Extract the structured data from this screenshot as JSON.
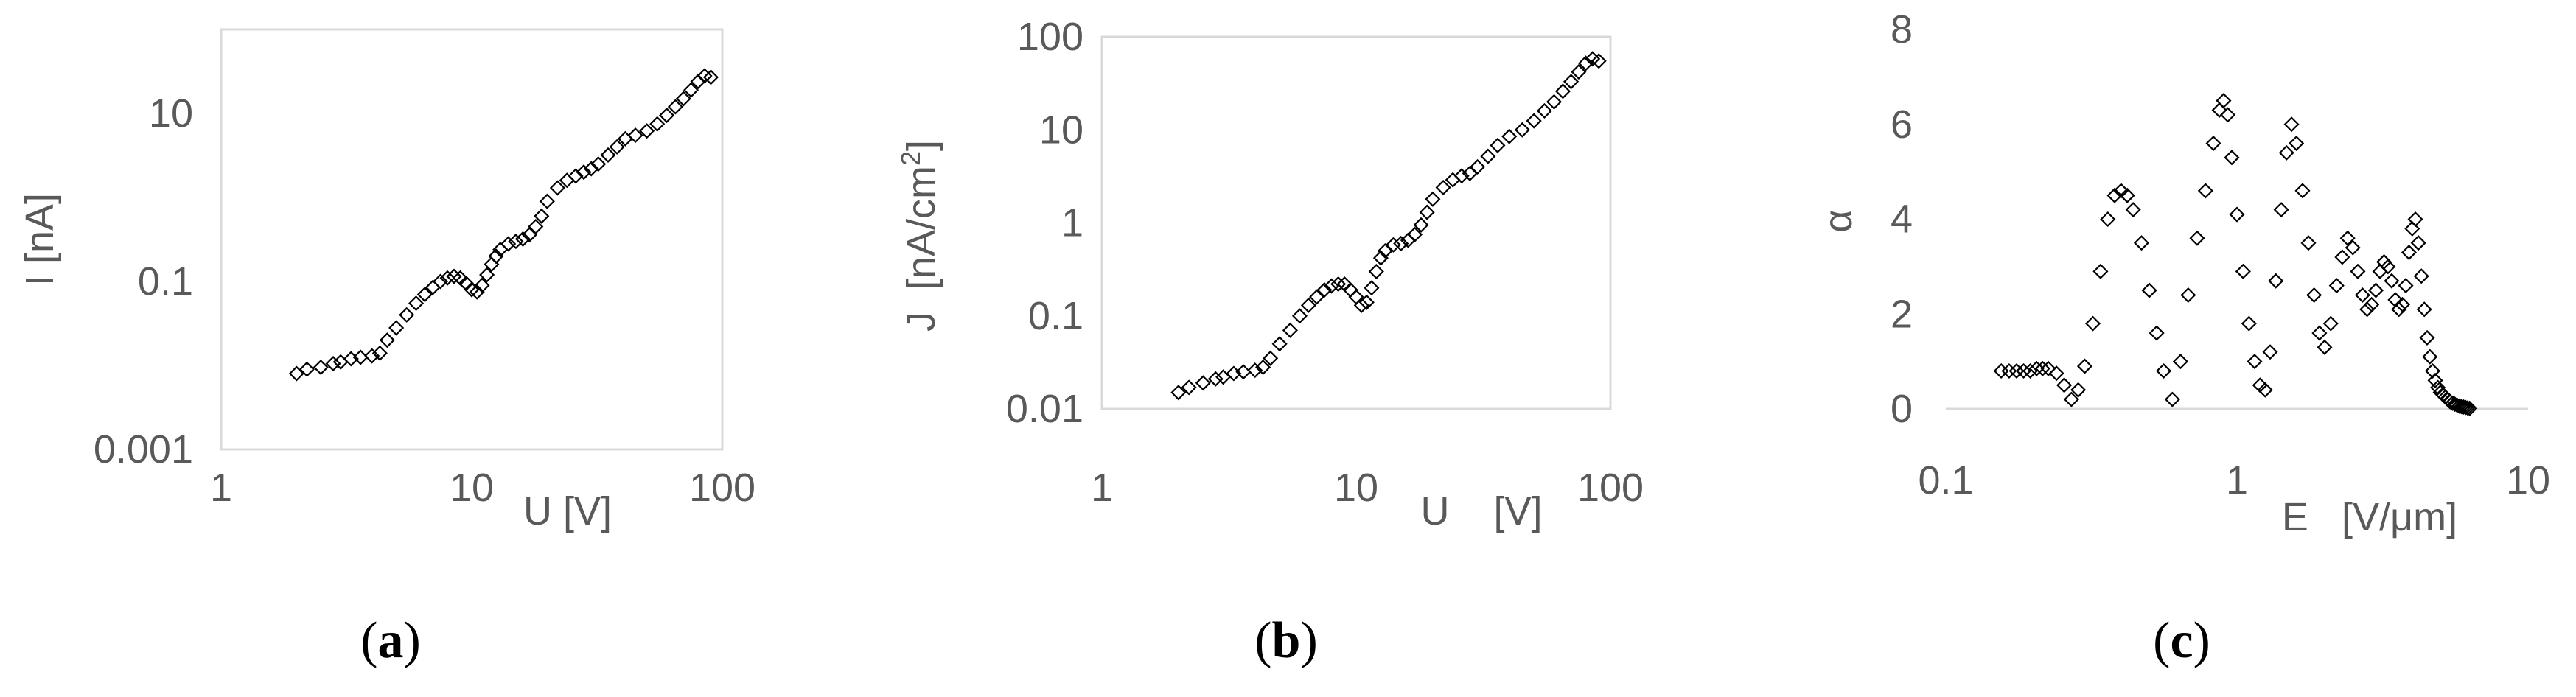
{
  "colors": {
    "axis": "#d9d9d9",
    "tick_label": "#595959",
    "marker": "#000000"
  },
  "captions": {
    "a": "(a)",
    "a_letter": "a",
    "b": "(b)",
    "b_letter": "b",
    "c": "(c)",
    "c_letter": "c"
  },
  "chart_data": [
    {
      "id": "a",
      "type": "scatter",
      "marker": "diamond-open",
      "xscale": "log",
      "yscale": "log",
      "xlim": [
        1,
        100
      ],
      "ylim": [
        0.001,
        100
      ],
      "xticks": [
        1,
        10,
        100
      ],
      "xtick_labels": [
        "1",
        "10",
        "100"
      ],
      "yticks": [
        0.001,
        0.1,
        10
      ],
      "ytick_labels": [
        "0.001",
        "0.1",
        "10"
      ],
      "xlabel": "U [V]",
      "ylabel": "I  [nA]",
      "grid": false,
      "series": [
        {
          "x": [
            2.0,
            2.2,
            2.5,
            2.8,
            3.0,
            3.3,
            3.6,
            4.0,
            4.3,
            4.6,
            5.0,
            5.5,
            6.0,
            6.5,
            7.0,
            7.5,
            8.0,
            8.5,
            9.0,
            9.5,
            10.0,
            10.5,
            11.0,
            11.5,
            12.0,
            12.5,
            13.0,
            14.0,
            15.0,
            16.0,
            17.0,
            18.0,
            19.0,
            20.0,
            22.0,
            24.0,
            26.0,
            28.0,
            30.0,
            32.0,
            35.0,
            38.0,
            41.0,
            45.0,
            50.0,
            55.0,
            60.0,
            65.0,
            70.0,
            75.0,
            80.0,
            85.0,
            90.0
          ],
          "y": [
            0.008,
            0.009,
            0.0095,
            0.0105,
            0.011,
            0.012,
            0.0125,
            0.013,
            0.014,
            0.02,
            0.028,
            0.04,
            0.055,
            0.07,
            0.085,
            0.1,
            0.11,
            0.115,
            0.11,
            0.095,
            0.08,
            0.075,
            0.09,
            0.12,
            0.16,
            0.2,
            0.24,
            0.28,
            0.3,
            0.32,
            0.36,
            0.45,
            0.6,
            0.9,
            1.3,
            1.6,
            1.8,
            2.0,
            2.2,
            2.5,
            3.2,
            4.0,
            5.0,
            5.5,
            6.2,
            7.5,
            9.5,
            12.0,
            15.0,
            19.0,
            24.0,
            28.0,
            27.0
          ]
        }
      ]
    },
    {
      "id": "b",
      "type": "scatter",
      "marker": "diamond-open",
      "xscale": "log",
      "yscale": "log",
      "xlim": [
        1,
        100
      ],
      "ylim": [
        0.01,
        100
      ],
      "xticks": [
        1,
        10,
        100
      ],
      "xtick_labels": [
        "1",
        "10",
        "100"
      ],
      "yticks": [
        0.01,
        0.1,
        1,
        10,
        100
      ],
      "ytick_labels": [
        "0.01",
        "0.1",
        "1",
        "10",
        "100"
      ],
      "xlabel": "U    [V]",
      "ylabel": "J  [nA/cm",
      "ylabel_sup": "2",
      "ylabel_end": "]",
      "grid": false,
      "series": [
        {
          "x": [
            2.0,
            2.2,
            2.5,
            2.8,
            3.0,
            3.3,
            3.6,
            4.0,
            4.3,
            4.6,
            5.0,
            5.5,
            6.0,
            6.5,
            7.0,
            7.5,
            8.0,
            8.5,
            9.0,
            9.5,
            10.0,
            10.5,
            11.0,
            11.5,
            12.0,
            12.5,
            13.0,
            14.0,
            15.0,
            16.0,
            17.0,
            18.0,
            19.0,
            20.0,
            22.0,
            24.0,
            26.0,
            28.0,
            30.0,
            33.0,
            36.0,
            40.0,
            45.0,
            50.0,
            55.0,
            60.0,
            65.0,
            70.0,
            75.0,
            80.0,
            85.0,
            90.0
          ],
          "y": [
            0.015,
            0.017,
            0.019,
            0.021,
            0.022,
            0.024,
            0.025,
            0.026,
            0.028,
            0.035,
            0.05,
            0.07,
            0.1,
            0.13,
            0.16,
            0.19,
            0.21,
            0.22,
            0.22,
            0.19,
            0.16,
            0.13,
            0.14,
            0.2,
            0.3,
            0.42,
            0.5,
            0.58,
            0.6,
            0.65,
            0.75,
            0.95,
            1.3,
            1.8,
            2.4,
            2.9,
            3.2,
            3.4,
            4.0,
            5.2,
            6.8,
            8.5,
            10.0,
            12.5,
            16.0,
            20.0,
            26.0,
            33.0,
            42.0,
            52.0,
            58.0,
            55.0
          ]
        }
      ]
    },
    {
      "id": "c",
      "type": "scatter",
      "marker": "diamond-open",
      "xscale": "log",
      "yscale": "linear",
      "xlim": [
        0.1,
        10
      ],
      "ylim": [
        0,
        8
      ],
      "xticks": [
        0.1,
        1,
        10
      ],
      "xtick_labels": [
        "0.1",
        "1",
        "10"
      ],
      "yticks": [
        0,
        2,
        4,
        6,
        8
      ],
      "ytick_labels": [
        "0",
        "2",
        "4",
        "6",
        "8"
      ],
      "xlabel": "E   [V/μm]",
      "ylabel": "α",
      "grid": false,
      "series": [
        {
          "x": [
            0.155,
            0.165,
            0.175,
            0.185,
            0.195,
            0.205,
            0.215,
            0.225,
            0.24,
            0.255,
            0.27,
            0.285,
            0.3,
            0.32,
            0.34,
            0.36,
            0.38,
            0.4,
            0.42,
            0.44,
            0.47,
            0.5,
            0.53,
            0.56,
            0.6,
            0.64,
            0.68,
            0.73,
            0.78,
            0.83,
            0.87,
            0.9,
            0.93,
            0.96,
            1.0,
            1.05,
            1.1,
            1.15,
            1.2,
            1.25,
            1.3,
            1.36,
            1.42,
            1.48,
            1.54,
            1.6,
            1.68,
            1.76,
            1.84,
            1.92,
            2.0,
            2.1,
            2.2,
            2.3,
            2.4,
            2.5,
            2.6,
            2.7,
            2.8,
            2.9,
            3.0,
            3.1,
            3.2,
            3.3,
            3.4,
            3.5,
            3.6,
            3.7,
            3.8,
            3.9,
            4.0,
            4.1,
            4.2,
            4.3,
            4.4,
            4.5,
            4.6,
            4.7,
            4.8,
            4.9,
            5.0,
            5.1,
            5.2,
            5.3,
            5.4,
            5.5,
            5.6,
            5.7,
            5.8,
            5.9,
            6.0,
            6.1,
            6.2,
            6.3
          ],
          "y": [
            0.8,
            0.8,
            0.8,
            0.8,
            0.8,
            0.85,
            0.85,
            0.85,
            0.75,
            0.5,
            0.2,
            0.4,
            0.9,
            1.8,
            2.9,
            4.0,
            4.5,
            4.6,
            4.5,
            4.2,
            3.5,
            2.5,
            1.6,
            0.8,
            0.2,
            1.0,
            2.4,
            3.6,
            4.6,
            5.6,
            6.3,
            6.5,
            6.2,
            5.3,
            4.1,
            2.9,
            1.8,
            1.0,
            0.5,
            0.4,
            1.2,
            2.7,
            4.2,
            5.4,
            6.0,
            5.6,
            4.6,
            3.5,
            2.4,
            1.6,
            1.3,
            1.8,
            2.6,
            3.2,
            3.6,
            3.4,
            2.9,
            2.4,
            2.1,
            2.2,
            2.5,
            2.9,
            3.1,
            3.0,
            2.7,
            2.3,
            2.1,
            2.2,
            2.6,
            3.3,
            3.8,
            4.0,
            3.5,
            2.8,
            2.1,
            1.5,
            1.1,
            0.8,
            0.6,
            0.45,
            0.35,
            0.3,
            0.25,
            0.2,
            0.15,
            0.12,
            0.1,
            0.08,
            0.06,
            0.05,
            0.04,
            0.03,
            0.02,
            0.01
          ]
        }
      ]
    }
  ]
}
